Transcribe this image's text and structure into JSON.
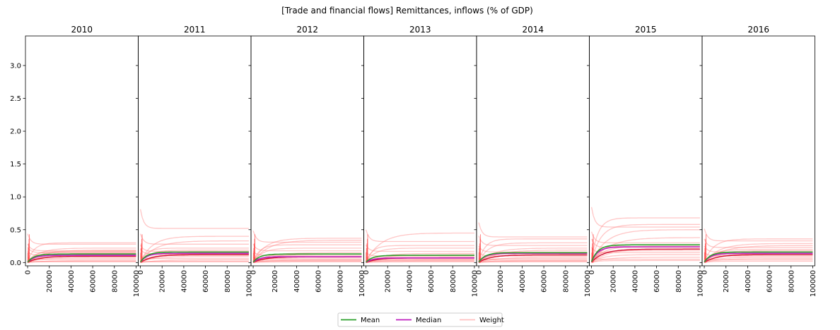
{
  "chart_data": {
    "type": "line",
    "title": "[Trade and financial flows] Remittances, inflows (% of GDP)",
    "xlabel": "",
    "ylabel": "",
    "xlim": [
      -2000,
      102000
    ],
    "ylim": [
      -0.05,
      3.45
    ],
    "x_ticks": [
      0,
      20000,
      40000,
      60000,
      80000,
      100000
    ],
    "y_ticks": [
      0.0,
      0.5,
      1.0,
      1.5,
      2.0,
      2.5,
      3.0
    ],
    "grid": false,
    "legend_position": "bottom-center",
    "legend": [
      {
        "label": "Mean",
        "color": "#2ca02c"
      },
      {
        "label": "Median",
        "color": "#bf20bf"
      },
      {
        "label": "Weight",
        "color": "#ffc0c0"
      }
    ],
    "panels": [
      {
        "title": "2010",
        "mean": 0.13,
        "median": 0.11,
        "weights": [
          0.3,
          0.28,
          0.22,
          0.19,
          0.18,
          0.17,
          0.16,
          0.15,
          0.14,
          0.12,
          0.11,
          0.09,
          0.07,
          0.05,
          0.03,
          0.02,
          0.01
        ]
      },
      {
        "title": "2011",
        "mean": 0.16,
        "median": 0.14,
        "weights": [
          0.52,
          0.4,
          0.33,
          0.28,
          0.22,
          0.19,
          0.17,
          0.15,
          0.14,
          0.13,
          0.11,
          0.09,
          0.06,
          0.04,
          0.02,
          0.01
        ]
      },
      {
        "title": "2012",
        "mean": 0.13,
        "median": 0.09,
        "weights": [
          0.37,
          0.34,
          0.31,
          0.27,
          0.22,
          0.18,
          0.15,
          0.13,
          0.11,
          0.09,
          0.07,
          0.05,
          0.04,
          0.03,
          0.02,
          0.01
        ]
      },
      {
        "title": "2013",
        "mean": 0.11,
        "median": 0.07,
        "weights": [
          0.45,
          0.32,
          0.26,
          0.22,
          0.17,
          0.14,
          0.12,
          0.1,
          0.08,
          0.06,
          0.05,
          0.04,
          0.03,
          0.02,
          0.01
        ]
      },
      {
        "title": "2014",
        "mean": 0.15,
        "median": 0.14,
        "weights": [
          0.39,
          0.36,
          0.3,
          0.26,
          0.22,
          0.19,
          0.16,
          0.14,
          0.12,
          0.1,
          0.08,
          0.06,
          0.04,
          0.03,
          0.02,
          0.01
        ]
      },
      {
        "title": "2015",
        "mean": 0.27,
        "median": 0.24,
        "weights": [
          0.68,
          0.58,
          0.54,
          0.5,
          0.38,
          0.3,
          0.27,
          0.25,
          0.23,
          0.21,
          0.18,
          0.15,
          0.12,
          0.08,
          0.05,
          0.03
        ]
      },
      {
        "title": "2016",
        "mean": 0.16,
        "median": 0.14,
        "weights": [
          0.36,
          0.33,
          0.29,
          0.26,
          0.23,
          0.2,
          0.18,
          0.16,
          0.14,
          0.12,
          0.1,
          0.08,
          0.06,
          0.04,
          0.02
        ]
      }
    ]
  }
}
